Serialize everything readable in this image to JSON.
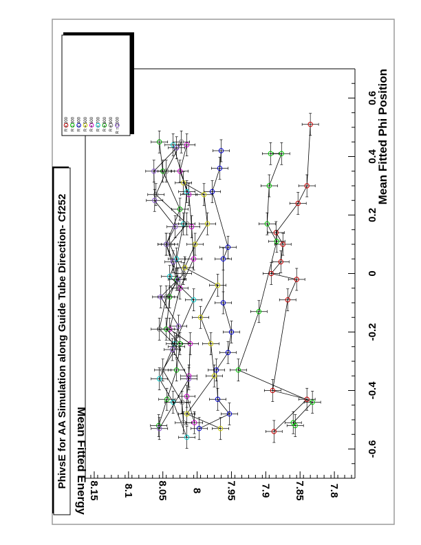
{
  "title": "PhivsE for AA Simulation along Guide Tube Direction- Cf252",
  "chart_data": {
    "type": "scatter",
    "xlabel": "Mean Fitted Phi Position",
    "ylabel": "Mean Fitted Energy",
    "xlim": [
      -0.7,
      0.7
    ],
    "ylim": [
      7.77,
      8.163
    ],
    "x_ticks": [
      -0.6,
      -0.4,
      -0.2,
      0,
      0.2,
      0.4,
      0.6
    ],
    "x_tick_labels": [
      "-0.6",
      "-0.4",
      "-0.2",
      "0",
      "0.2",
      "0.4",
      "0.6"
    ],
    "y_ticks": [
      7.8,
      7.85,
      7.9,
      7.95,
      8,
      8.05,
      8.1,
      8.15
    ],
    "y_tick_labels": [
      "7.8",
      "7.85",
      "7.9",
      "7.95",
      "8",
      "8.05",
      "8.1",
      "8.15"
    ],
    "orientation": "rotated 90° counter-clockwise",
    "legend_position": "top-right",
    "grid": false,
    "series": [
      {
        "name": "R = 200",
        "color": "#cc0000",
        "points": [
          [
            0.51,
            7.835
          ],
          [
            0.3,
            7.84
          ],
          [
            0.24,
            7.853
          ],
          [
            0.14,
            7.885
          ],
          [
            0.1,
            7.875
          ],
          [
            0.04,
            7.878
          ],
          [
            0.0,
            7.892
          ],
          [
            -0.02,
            7.855
          ],
          [
            -0.09,
            7.868
          ],
          [
            -0.4,
            7.89
          ],
          [
            -0.43,
            7.84
          ],
          [
            -0.54,
            7.888
          ]
        ]
      },
      {
        "name": "R = 300",
        "color": "#00cc00",
        "points": [
          [
            0.41,
            7.893
          ],
          [
            0.41,
            7.877
          ],
          [
            0.3,
            7.895
          ],
          [
            0.17,
            7.898
          ],
          [
            0.11,
            7.884
          ],
          [
            -0.13,
            7.91
          ],
          [
            -0.33,
            7.94
          ],
          [
            -0.44,
            7.832
          ],
          [
            -0.51,
            7.86
          ],
          [
            -0.52,
            7.857
          ]
        ]
      },
      {
        "name": "R = 400",
        "color": "#0000cc",
        "points": [
          [
            0.42,
            7.965
          ],
          [
            0.36,
            7.967
          ],
          [
            0.28,
            7.978
          ],
          [
            0.09,
            7.955
          ],
          [
            0.05,
            7.962
          ],
          [
            -0.1,
            7.962
          ],
          [
            -0.2,
            7.95
          ],
          [
            -0.27,
            7.955
          ],
          [
            -0.33,
            7.972
          ],
          [
            -0.43,
            7.97
          ],
          [
            -0.48,
            7.953
          ],
          [
            -0.53,
            7.997
          ]
        ]
      },
      {
        "name": "R = 500",
        "color": "#cccc00",
        "points": [
          [
            0.31,
            8.02
          ],
          [
            0.27,
            7.99
          ],
          [
            0.17,
            7.985
          ],
          [
            0.1,
            8.003
          ],
          [
            0.02,
            8.018
          ],
          [
            -0.04,
            7.97
          ],
          [
            -0.15,
            7.995
          ],
          [
            -0.24,
            7.98
          ],
          [
            -0.35,
            7.975
          ],
          [
            -0.48,
            8.015
          ],
          [
            -0.53,
            7.966
          ]
        ]
      },
      {
        "name": "R = 600",
        "color": "#cc00cc",
        "points": [
          [
            0.44,
            8.015
          ],
          [
            0.35,
            8.025
          ],
          [
            0.27,
            8.012
          ],
          [
            0.16,
            8.008
          ],
          [
            0.05,
            8.005
          ],
          [
            -0.05,
            8.025
          ],
          [
            -0.19,
            8.04
          ],
          [
            -0.24,
            8.01
          ],
          [
            -0.35,
            8.012
          ],
          [
            -0.42,
            8.015
          ],
          [
            -0.51,
            8.004
          ]
        ]
      },
      {
        "name": "R = 700",
        "color": "#00cccc",
        "points": [
          [
            0.44,
            8.035
          ],
          [
            0.28,
            8.015
          ],
          [
            0.17,
            8.02
          ],
          [
            0.05,
            8.03
          ],
          [
            -0.01,
            8.04
          ],
          [
            -0.09,
            8.005
          ],
          [
            -0.24,
            8.033
          ],
          [
            -0.36,
            8.055
          ],
          [
            -0.44,
            8.035
          ],
          [
            -0.56,
            8.015
          ]
        ]
      },
      {
        "name": "R = 800",
        "color": "#00aa00",
        "points": [
          [
            0.45,
            8.055
          ],
          [
            0.35,
            8.05
          ],
          [
            0.22,
            8.025
          ],
          [
            0.1,
            8.045
          ],
          [
            -0.02,
            8.03
          ],
          [
            -0.08,
            8.04
          ],
          [
            -0.19,
            8.045
          ],
          [
            -0.24,
            8.025
          ],
          [
            -0.33,
            8.03
          ],
          [
            -0.43,
            8.044
          ],
          [
            -0.52,
            8.056
          ]
        ]
      },
      {
        "name": "R = 900",
        "color": "#777777",
        "points": [
          [
            0.45,
            8.023
          ],
          [
            0.35,
            8.045
          ],
          [
            0.27,
            8.06
          ],
          [
            0.17,
            8.015
          ],
          [
            0.1,
            8.04
          ],
          [
            0.0,
            8.02
          ],
          [
            -0.08,
            8.045
          ],
          [
            -0.19,
            8.055
          ],
          [
            -0.25,
            8.03
          ],
          [
            -0.33,
            8.05
          ],
          [
            -0.44,
            8.022
          ],
          [
            -0.51,
            8.02
          ]
        ]
      },
      {
        "name": "R = 1000",
        "color": "#8855cc",
        "points": [
          [
            0.43,
            8.03
          ],
          [
            0.35,
            8.063
          ],
          [
            0.25,
            8.062
          ],
          [
            0.16,
            8.032
          ],
          [
            0.1,
            8.045
          ],
          [
            0.04,
            8.035
          ],
          [
            -0.02,
            8.028
          ],
          [
            -0.08,
            8.053
          ],
          [
            -0.18,
            8.027
          ],
          [
            -0.26,
            8.036
          ],
          [
            -0.36,
            8.012
          ],
          [
            -0.53,
            8.055
          ]
        ]
      }
    ]
  }
}
